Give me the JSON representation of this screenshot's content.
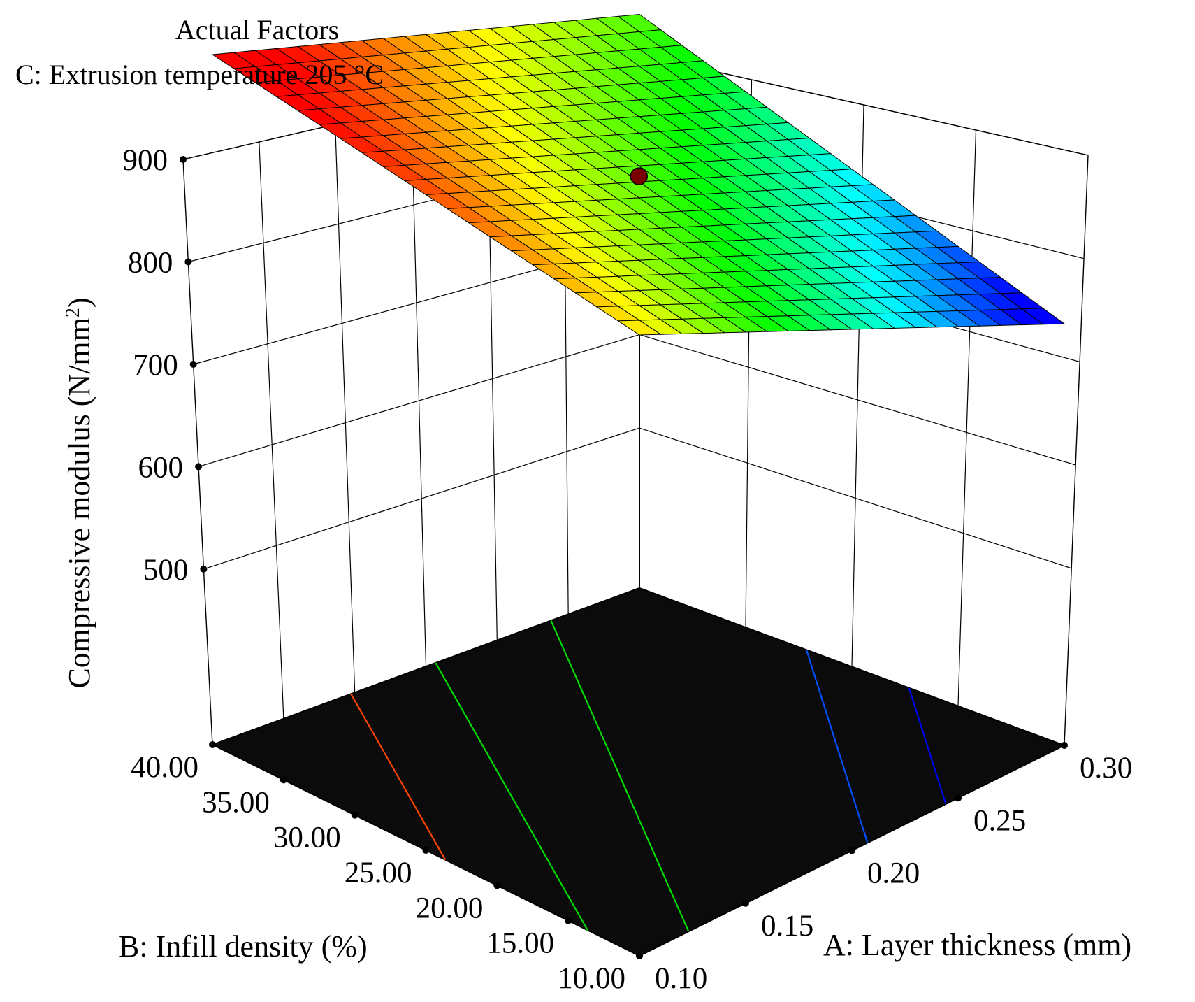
{
  "chart_data": {
    "type": "surface3d",
    "annotations": {
      "factors_title": "Actual Factors",
      "factor_line": "C: Extrusion temperature 205 °C"
    },
    "z_axis": {
      "title_main": "Compressive modulus (N/mm",
      "title_sup": "2",
      "title_end": ")",
      "range": [
        500,
        900
      ],
      "ticks": [
        {
          "value": 500,
          "label": "500"
        },
        {
          "value": 600,
          "label": "600"
        },
        {
          "value": 700,
          "label": "700"
        },
        {
          "value": 800,
          "label": "800"
        },
        {
          "value": 900,
          "label": "900"
        }
      ]
    },
    "a_axis": {
      "title": "A: Layer thickness (mm)",
      "range": [
        0.1,
        0.3
      ],
      "ticks": [
        {
          "value": 0.1,
          "label": "0.10"
        },
        {
          "value": 0.15,
          "label": "0.15"
        },
        {
          "value": 0.2,
          "label": "0.20"
        },
        {
          "value": 0.25,
          "label": "0.25"
        },
        {
          "value": 0.3,
          "label": "0.30"
        }
      ]
    },
    "b_axis": {
      "title": "B: Infill density (%)",
      "range": [
        10,
        40
      ],
      "ticks": [
        {
          "value": 10,
          "label": "10.00"
        },
        {
          "value": 15,
          "label": "15.00"
        },
        {
          "value": 20,
          "label": "20.00"
        },
        {
          "value": 25,
          "label": "25.00"
        },
        {
          "value": 30,
          "label": "30.00"
        },
        {
          "value": 35,
          "label": "35.00"
        },
        {
          "value": 40,
          "label": "40.00"
        }
      ]
    },
    "surface": {
      "model": "linear",
      "corners": {
        "A_0.10_B_10": 742,
        "A_0.30_B_10": 552,
        "A_0.10_B_40": 808,
        "A_0.30_B_40": 697
      },
      "grid_divisions": 20,
      "colormap": [
        "#0000ff",
        "#00ffff",
        "#00ff00",
        "#ffff00",
        "#ff0000"
      ],
      "color_range": [
        570,
        790
      ]
    },
    "contours": [
      {
        "value": 772,
        "color": "#ff4500"
      },
      {
        "value": 750,
        "color": "#00dd00"
      },
      {
        "value": 720,
        "color": "#00dd00"
      },
      {
        "value": 640,
        "color": "#0050ff"
      },
      {
        "value": 605,
        "color": "#0000ee"
      }
    ],
    "design_point": {
      "A": 0.2,
      "B": 25,
      "value": 700,
      "color": "#7a0000"
    }
  }
}
